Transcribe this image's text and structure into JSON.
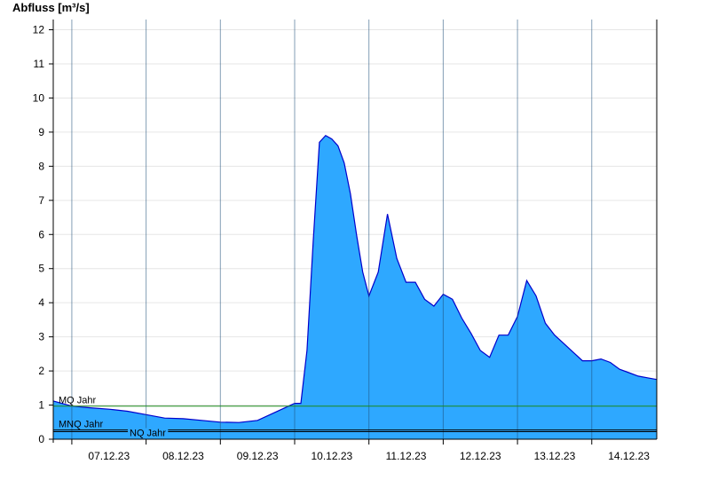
{
  "chart_data": {
    "type": "area",
    "title": "",
    "xlabel": "",
    "ylabel": "Abfluss [m³/s]",
    "ylim": [
      0,
      12.3
    ],
    "xlim": [
      "2023-12-06T18:00",
      "2023-12-14T21:00"
    ],
    "yticks": [
      0,
      1,
      2,
      3,
      4,
      5,
      6,
      7,
      8,
      9,
      10,
      11,
      12
    ],
    "day_separators": [
      "2023-12-07",
      "2023-12-08",
      "2023-12-09",
      "2023-12-10",
      "2023-12-11",
      "2023-12-12",
      "2023-12-13",
      "2023-12-14"
    ],
    "xtick_labels": [
      {
        "at": "2023-12-07T12:00",
        "label": "07.12.23"
      },
      {
        "at": "2023-12-08T12:00",
        "label": "08.12.23"
      },
      {
        "at": "2023-12-09T12:00",
        "label": "09.12.23"
      },
      {
        "at": "2023-12-10T12:00",
        "label": "10.12.23"
      },
      {
        "at": "2023-12-11T12:00",
        "label": "11.12.23"
      },
      {
        "at": "2023-12-12T12:00",
        "label": "12.12.23"
      },
      {
        "at": "2023-12-13T12:00",
        "label": "13.12.23"
      },
      {
        "at": "2023-12-14T12:00",
        "label": "14.12.23"
      }
    ],
    "grid": true,
    "fill_color": "#2ea8ff",
    "line_color": "#0000cc",
    "reference_lines": [
      {
        "label": "MQ Jahr",
        "value": 0.97,
        "color": "#1a8a1a"
      },
      {
        "label": "MNQ Jahr",
        "value": 0.27,
        "color": "#000000"
      },
      {
        "label": "NQ Jahr",
        "value": 0.22,
        "color": "#000000"
      }
    ],
    "series": [
      {
        "x": [
          "2023-12-06T18:00",
          "2023-12-07T00:00",
          "2023-12-07T06:00",
          "2023-12-07T12:00",
          "2023-12-07T18:00",
          "2023-12-08T00:00",
          "2023-12-08T06:00",
          "2023-12-08T12:00",
          "2023-12-08T18:00",
          "2023-12-09T00:00",
          "2023-12-09T06:00",
          "2023-12-09T12:00",
          "2023-12-09T18:00",
          "2023-12-10T00:00",
          "2023-12-10T02:00",
          "2023-12-10T04:00",
          "2023-12-10T06:00",
          "2023-12-10T08:00",
          "2023-12-10T10:00",
          "2023-12-10T12:00",
          "2023-12-10T14:00",
          "2023-12-10T16:00",
          "2023-12-10T18:00",
          "2023-12-10T20:00",
          "2023-12-10T22:00",
          "2023-12-11T00:00",
          "2023-12-11T03:00",
          "2023-12-11T06:00",
          "2023-12-11T09:00",
          "2023-12-11T12:00",
          "2023-12-11T15:00",
          "2023-12-11T18:00",
          "2023-12-11T21:00",
          "2023-12-12T00:00",
          "2023-12-12T03:00",
          "2023-12-12T06:00",
          "2023-12-12T09:00",
          "2023-12-12T12:00",
          "2023-12-12T15:00",
          "2023-12-12T18:00",
          "2023-12-12T21:00",
          "2023-12-13T00:00",
          "2023-12-13T03:00",
          "2023-12-13T06:00",
          "2023-12-13T09:00",
          "2023-12-13T12:00",
          "2023-12-13T15:00",
          "2023-12-13T18:00",
          "2023-12-13T21:00",
          "2023-12-14T00:00",
          "2023-12-14T03:00",
          "2023-12-14T06:00",
          "2023-12-14T09:00",
          "2023-12-14T12:00",
          "2023-12-14T15:00",
          "2023-12-14T18:00",
          "2023-12-14T21:00"
        ],
        "y": [
          1.12,
          0.97,
          0.92,
          0.88,
          0.82,
          0.72,
          0.62,
          0.6,
          0.55,
          0.5,
          0.49,
          0.55,
          0.8,
          1.05,
          1.05,
          2.6,
          5.8,
          8.7,
          8.9,
          8.8,
          8.6,
          8.1,
          7.2,
          6.0,
          4.9,
          4.2,
          4.9,
          6.6,
          5.3,
          4.6,
          4.6,
          4.1,
          3.9,
          4.25,
          4.1,
          3.55,
          3.1,
          2.6,
          2.4,
          3.05,
          3.05,
          3.6,
          4.65,
          4.2,
          3.4,
          3.05,
          2.8,
          2.55,
          2.3,
          2.3,
          2.35,
          2.25,
          2.05,
          1.95,
          1.85,
          1.8,
          1.75
        ]
      }
    ]
  }
}
